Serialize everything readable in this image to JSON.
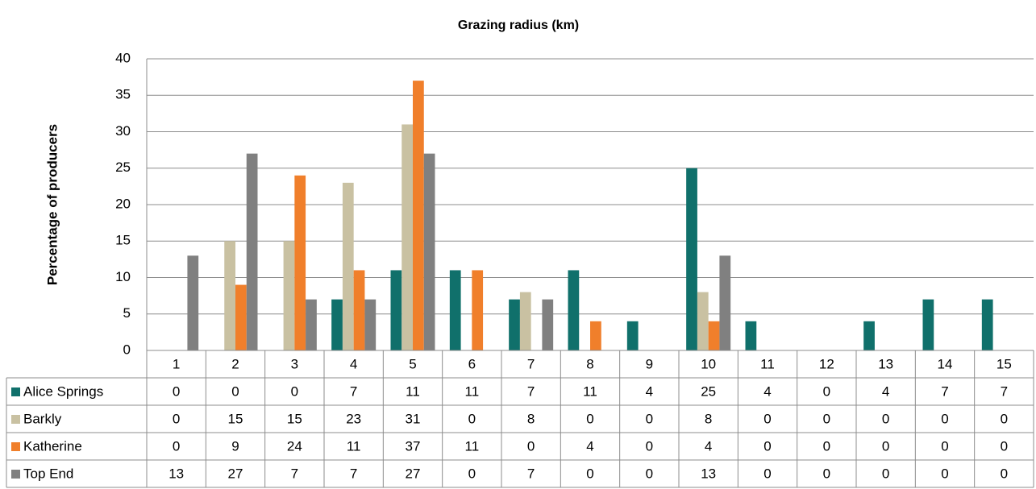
{
  "chart_data": {
    "type": "bar",
    "title": "Grazing radius (km)",
    "y_label": "Percentage of producers",
    "categories": [
      "1",
      "2",
      "3",
      "4",
      "5",
      "6",
      "7",
      "8",
      "9",
      "10",
      "11",
      "12",
      "13",
      "14",
      "15"
    ],
    "series": [
      {
        "name": "Alice Springs",
        "color": "#10706b",
        "values": [
          0,
          0,
          0,
          7,
          11,
          11,
          7,
          11,
          4,
          25,
          4,
          0,
          4,
          7,
          7
        ]
      },
      {
        "name": "Barkly",
        "color": "#c9c1a2",
        "values": [
          0,
          15,
          15,
          23,
          31,
          0,
          8,
          0,
          0,
          8,
          0,
          0,
          0,
          0,
          0
        ]
      },
      {
        "name": "Katherine",
        "color": "#f07f2b",
        "values": [
          0,
          9,
          24,
          11,
          37,
          11,
          0,
          4,
          0,
          4,
          0,
          0,
          0,
          0,
          0
        ]
      },
      {
        "name": "Top End",
        "color": "#808080",
        "values": [
          13,
          27,
          7,
          7,
          27,
          0,
          7,
          0,
          0,
          13,
          0,
          0,
          0,
          0,
          0
        ]
      }
    ],
    "ylim": [
      0,
      40
    ],
    "yticks": [
      0,
      5,
      10,
      15,
      20,
      25,
      30,
      35,
      40
    ],
    "grid": true
  }
}
